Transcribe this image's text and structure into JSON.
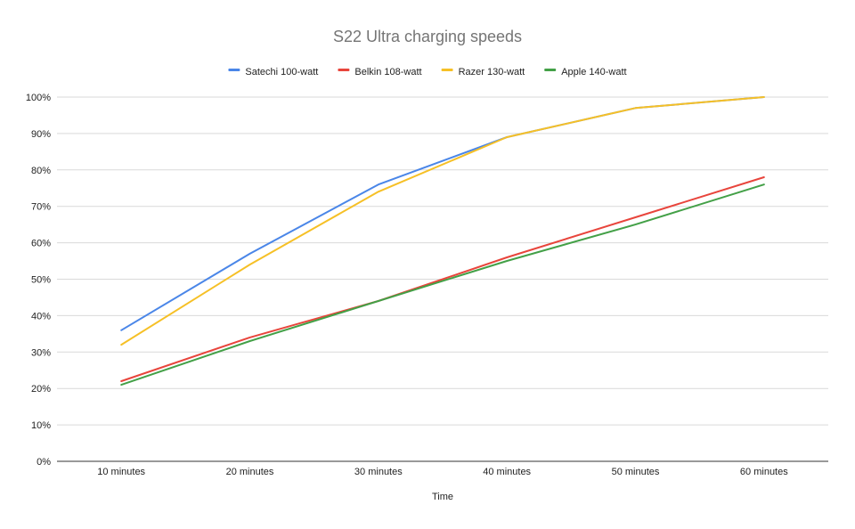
{
  "chart_data": {
    "type": "line",
    "title": "S22 Ultra charging speeds",
    "xlabel": "Time",
    "ylabel": "",
    "categories": [
      "10 minutes",
      "20 minutes",
      "30 minutes",
      "40 minutes",
      "50 minutes",
      "60 minutes"
    ],
    "ylim": [
      0,
      100
    ],
    "y_ticks": [
      "0%",
      "10%",
      "20%",
      "30%",
      "40%",
      "50%",
      "60%",
      "70%",
      "80%",
      "90%",
      "100%"
    ],
    "grid": true,
    "legend_position": "top",
    "series": [
      {
        "name": "Satechi 100-watt",
        "color": "#4a86e8",
        "values": [
          36,
          57,
          76,
          89,
          97,
          100
        ]
      },
      {
        "name": "Belkin 108-watt",
        "color": "#e8453c",
        "values": [
          22,
          34,
          44,
          56,
          67,
          78
        ]
      },
      {
        "name": "Razer 130-watt",
        "color": "#f6c026",
        "values": [
          32,
          54,
          74,
          89,
          97,
          100
        ]
      },
      {
        "name": "Apple 140-watt",
        "color": "#43a047",
        "values": [
          21,
          33,
          44,
          55,
          65,
          76
        ]
      }
    ]
  }
}
